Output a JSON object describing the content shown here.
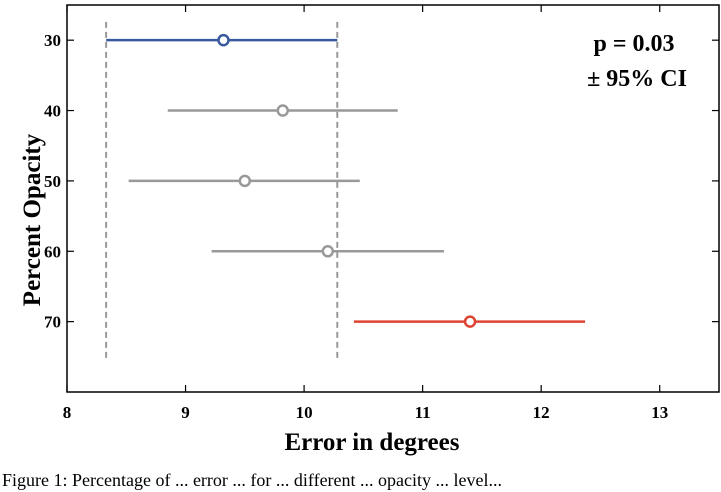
{
  "chart_data": {
    "type": "scatter",
    "subtype": "interval-plot",
    "xlabel": "Error in degrees",
    "ylabel": "Percent Opacity",
    "xlim": [
      8,
      13.5
    ],
    "ylim": [
      25,
      80
    ],
    "y_inverted": true,
    "xticks": [
      "8",
      "9",
      "10",
      "11",
      "12",
      "13"
    ],
    "yticks": [
      "30",
      "40",
      "50",
      "60",
      "70"
    ],
    "annotations": [
      "p = 0.03",
      "± 95% CI"
    ],
    "grid": false,
    "reference_lines": {
      "style": "dashed",
      "color": "#999999",
      "x": [
        8.33,
        10.28
      ]
    },
    "series": [
      {
        "y": 30,
        "mean": 9.32,
        "ci_low": 8.33,
        "ci_high": 10.28,
        "color": "#3a5aa0"
      },
      {
        "y": 40,
        "mean": 9.82,
        "ci_low": 8.85,
        "ci_high": 10.79,
        "color": "#999999"
      },
      {
        "y": 50,
        "mean": 9.5,
        "ci_low": 8.52,
        "ci_high": 10.47,
        "color": "#999999"
      },
      {
        "y": 60,
        "mean": 10.2,
        "ci_low": 9.22,
        "ci_high": 11.18,
        "color": "#999999"
      },
      {
        "y": 70,
        "mean": 11.4,
        "ci_low": 10.42,
        "ci_high": 12.37,
        "color": "#dd4433"
      }
    ]
  },
  "caption": "Figure 1: Percentage of ... error ... for ... different ... opacity ... level..."
}
